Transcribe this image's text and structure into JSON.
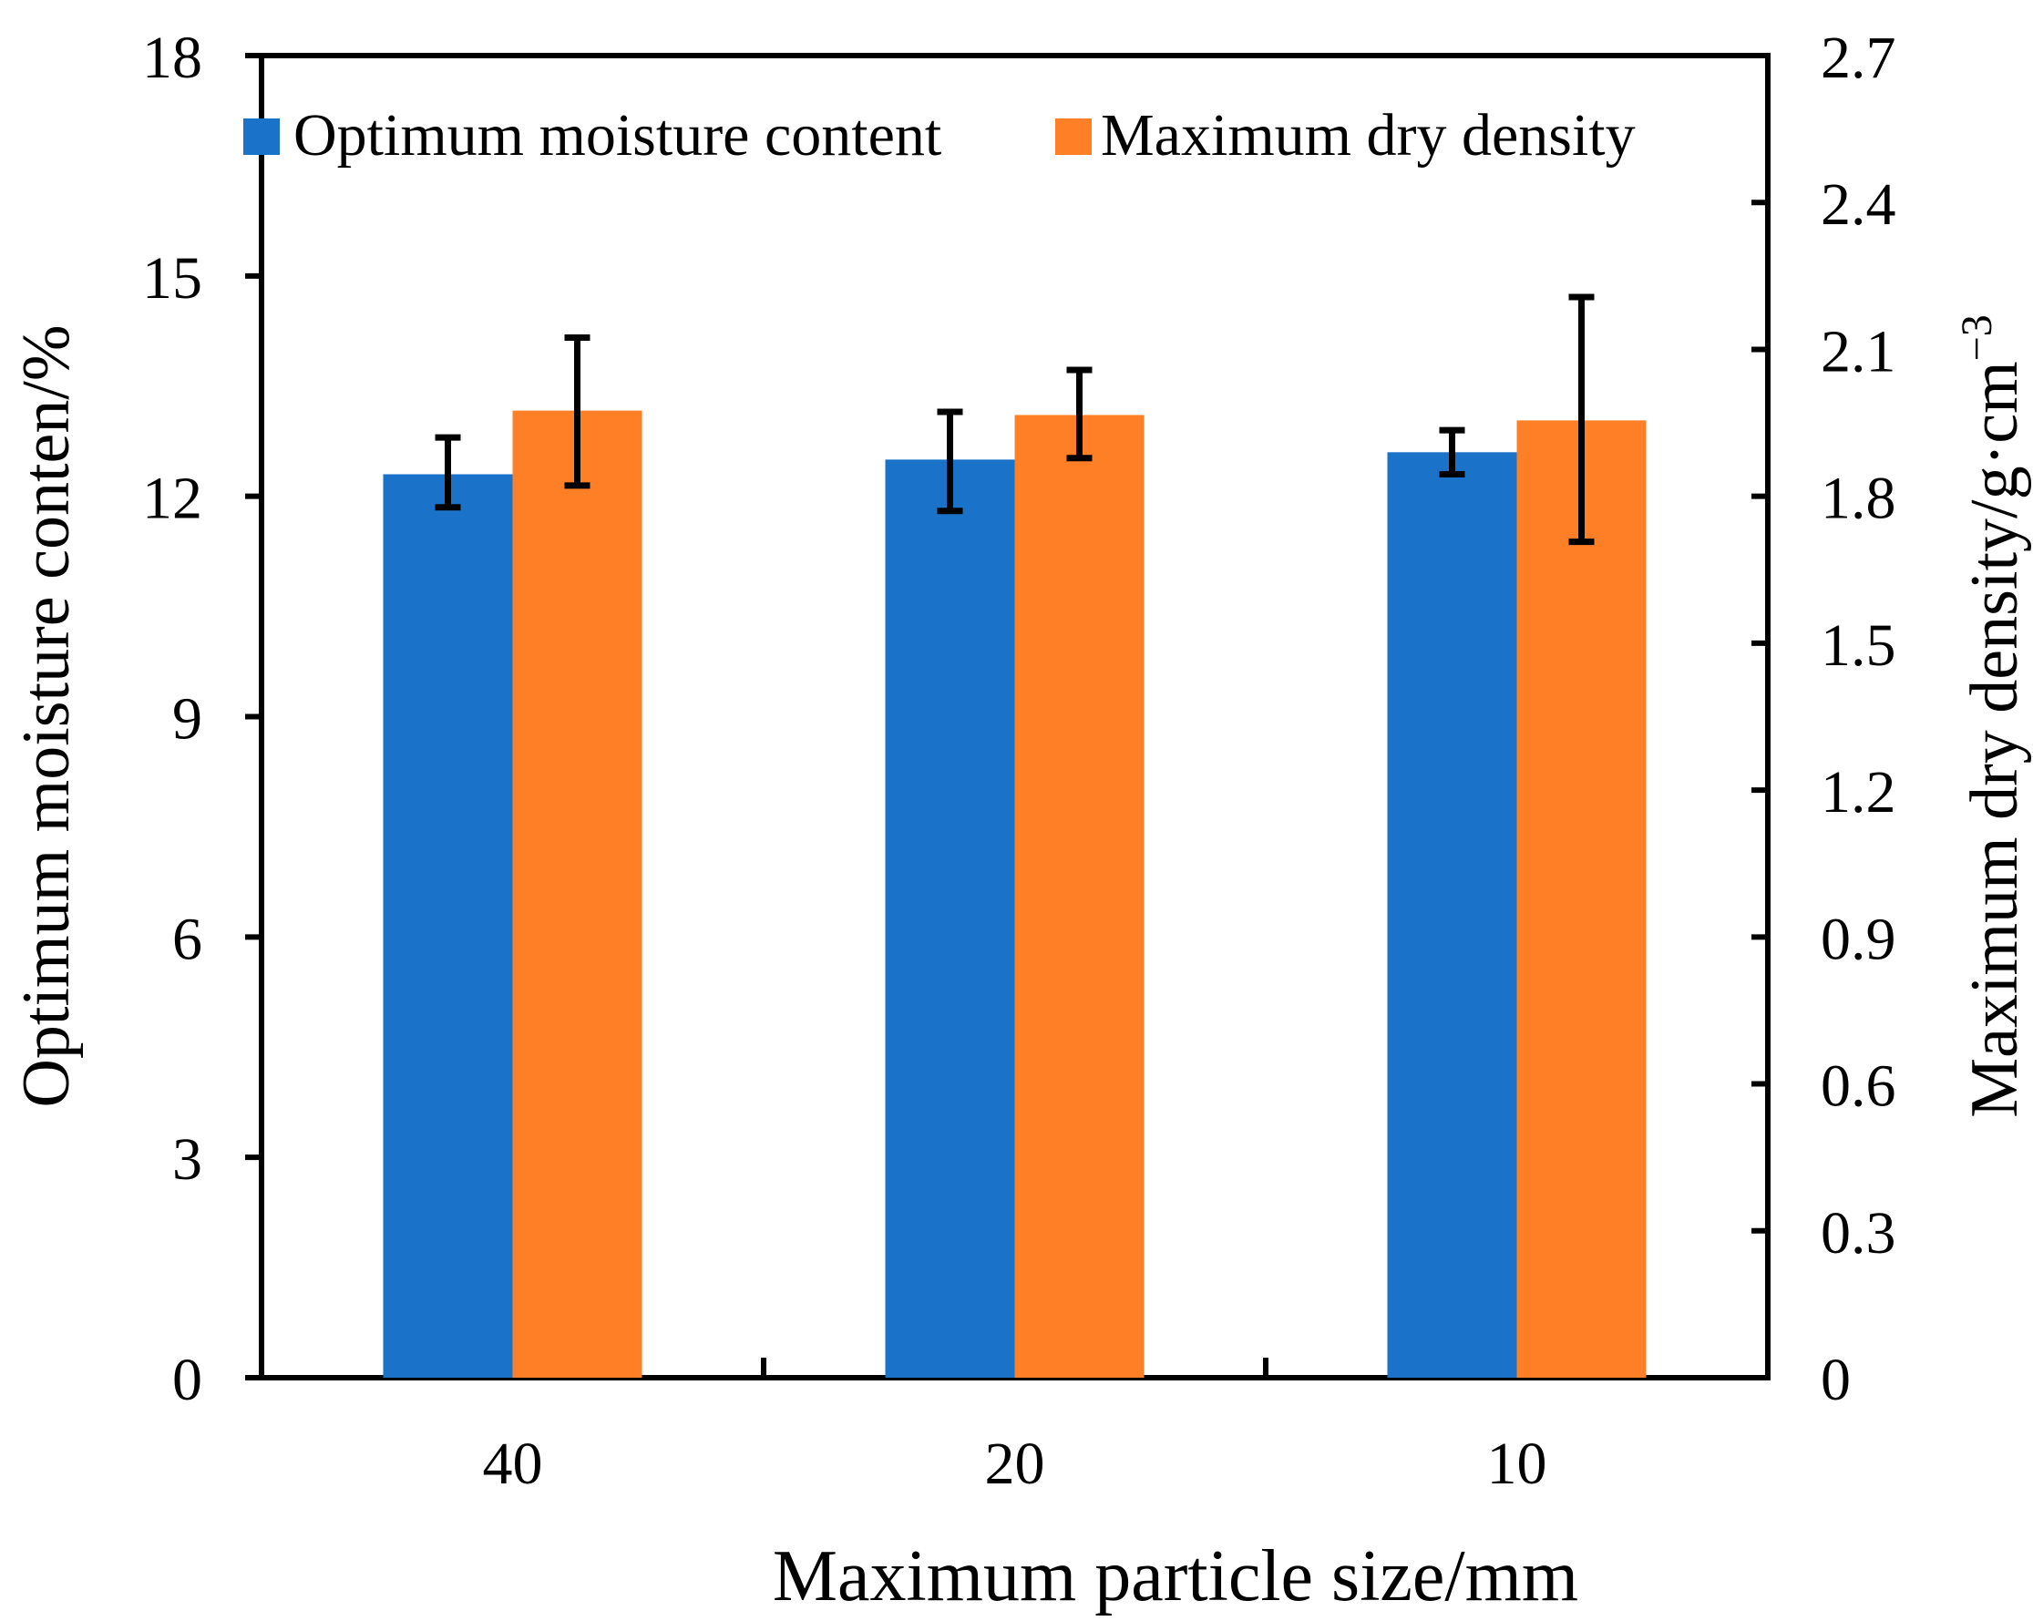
{
  "chart_data": {
    "type": "bar",
    "categories": [
      "40",
      "20",
      "10"
    ],
    "xlabel": "Maximum particle size/mm",
    "ylabel_left": "Optimum moisture conten/%",
    "ylabel_right_base": "Maximum dry density/g·cm",
    "ylabel_right_superscript": "−3",
    "ylim_left": [
      0,
      18
    ],
    "yticks_left": [
      "0",
      "3",
      "6",
      "9",
      "12",
      "15",
      "18"
    ],
    "ylim_right": [
      0,
      2.7
    ],
    "yticks_right": [
      "0",
      "0.3",
      "0.6",
      "0.9",
      "1.2",
      "1.5",
      "1.8",
      "2.1",
      "2.4",
      "2.7"
    ],
    "legend_position": "top",
    "grid": false,
    "series": [
      {
        "name": "Optimum moisture content",
        "axis": "left",
        "color": "#1a73c8",
        "values": [
          12.3,
          12.5,
          12.6
        ],
        "error_low": [
          11.85,
          11.8,
          12.3
        ],
        "error_high": [
          12.8,
          13.15,
          12.9
        ]
      },
      {
        "name": "Maximum dry density",
        "axis": "right",
        "color": "#ff7f27",
        "values": [
          1.975,
          1.966,
          1.955
        ],
        "error_low": [
          1.822,
          1.878,
          1.707
        ],
        "error_high": [
          2.124,
          2.058,
          2.207
        ]
      }
    ]
  }
}
